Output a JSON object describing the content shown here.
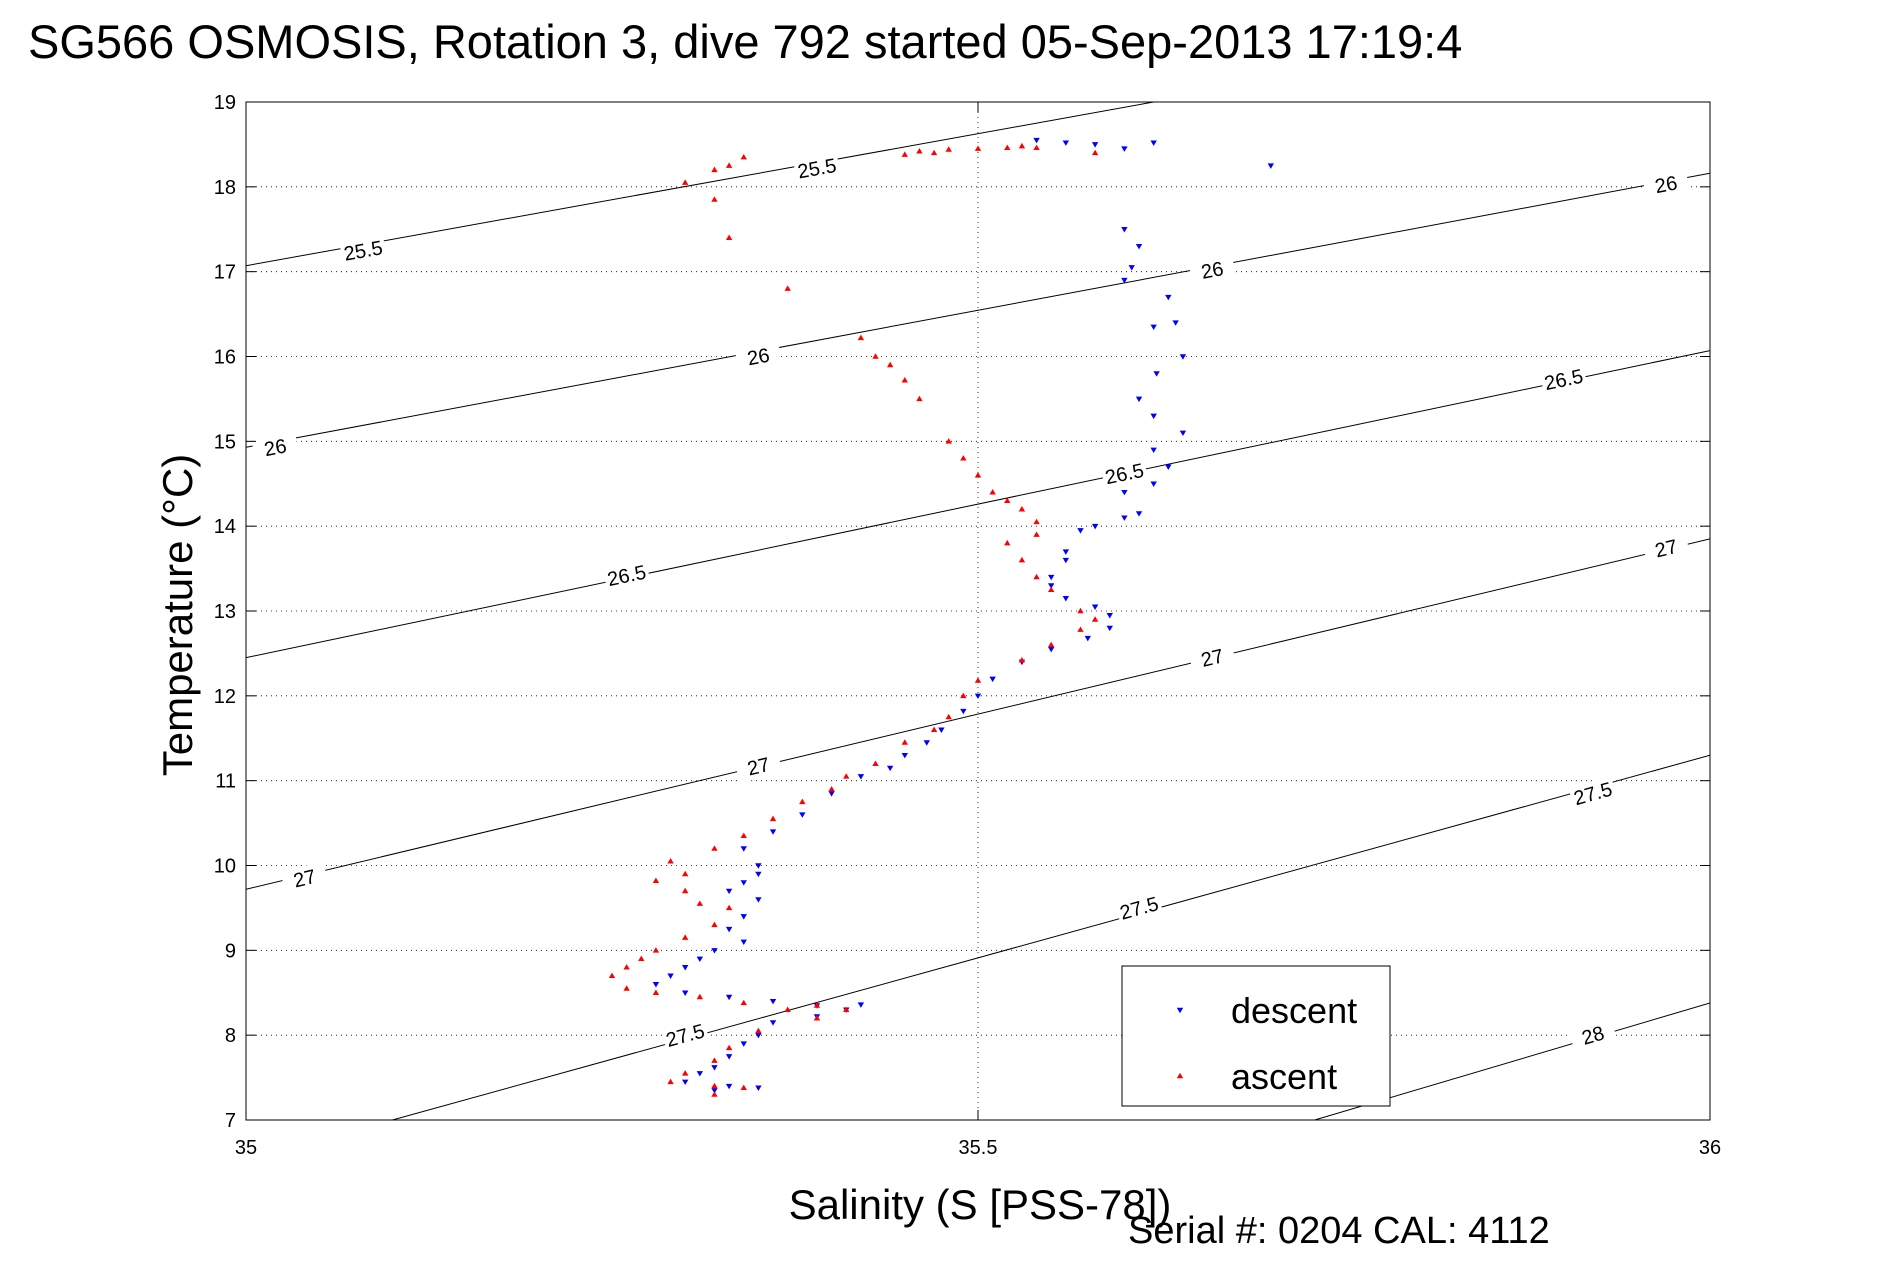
{
  "chart_data": {
    "type": "scatter",
    "title": "SG566 OSMOSIS, Rotation 3, dive 792 started 05-Sep-2013 17:19:4",
    "xlabel": "Salinity (S [PSS-78])",
    "ylabel": "Temperature (°C)",
    "footnote": "Serial #: 0204  CAL: 4112",
    "xlim": [
      35,
      36
    ],
    "ylim": [
      7,
      19
    ],
    "x_ticks": [
      "35",
      "35.5",
      "36"
    ],
    "y_ticks": [
      "7",
      "8",
      "9",
      "10",
      "11",
      "12",
      "13",
      "14",
      "15",
      "16",
      "17",
      "18",
      "19"
    ],
    "grid": "dotted",
    "legend_position": "bottom-right",
    "density_contours": [
      {
        "label": "25.5",
        "points": [
          [
            35.0,
            17.07
          ],
          [
            35.62,
            19.0
          ]
        ]
      },
      {
        "label": "26",
        "points": [
          [
            35.0,
            14.93
          ],
          [
            36.0,
            18.16
          ]
        ]
      },
      {
        "label": "26.5",
        "points": [
          [
            35.0,
            12.45
          ],
          [
            36.0,
            16.07
          ]
        ]
      },
      {
        "label": "27",
        "points": [
          [
            35.0,
            9.72
          ],
          [
            36.0,
            13.85
          ]
        ]
      },
      {
        "label": "27.5",
        "points": [
          [
            35.1,
            7.0
          ],
          [
            36.0,
            11.3
          ]
        ]
      },
      {
        "label": "28",
        "points": [
          [
            35.73,
            7.0
          ],
          [
            36.0,
            8.38
          ]
        ]
      }
    ],
    "contour_label_positions": [
      {
        "label": "25.5",
        "x": 35.08,
        "y": 17.25
      },
      {
        "label": "25.5",
        "x": 35.39,
        "y": 18.22
      },
      {
        "label": "26",
        "x": 35.02,
        "y": 14.93
      },
      {
        "label": "26",
        "x": 35.35,
        "y": 16.0
      },
      {
        "label": "26",
        "x": 35.66,
        "y": 17.02
      },
      {
        "label": "26",
        "x": 35.97,
        "y": 18.03
      },
      {
        "label": "26.5",
        "x": 35.26,
        "y": 13.42
      },
      {
        "label": "26.5",
        "x": 35.6,
        "y": 14.62
      },
      {
        "label": "26.5",
        "x": 35.9,
        "y": 15.73
      },
      {
        "label": "27",
        "x": 35.04,
        "y": 9.85
      },
      {
        "label": "27",
        "x": 35.35,
        "y": 11.17
      },
      {
        "label": "27",
        "x": 35.66,
        "y": 12.45
      },
      {
        "label": "27",
        "x": 35.97,
        "y": 13.74
      },
      {
        "label": "27.5",
        "x": 35.3,
        "y": 8.0
      },
      {
        "label": "27.5",
        "x": 35.61,
        "y": 9.5
      },
      {
        "label": "27.5",
        "x": 35.92,
        "y": 10.85
      },
      {
        "label": "28",
        "x": 35.92,
        "y": 8.0
      }
    ],
    "series": [
      {
        "name": "descent",
        "color": "#0000ff",
        "marker": "triangle-down",
        "points": [
          [
            35.7,
            18.25
          ],
          [
            35.62,
            18.52
          ],
          [
            35.6,
            18.45
          ],
          [
            35.58,
            18.5
          ],
          [
            35.56,
            18.52
          ],
          [
            35.54,
            18.55
          ],
          [
            35.6,
            17.5
          ],
          [
            35.61,
            17.3
          ],
          [
            35.605,
            17.05
          ],
          [
            35.6,
            16.9
          ],
          [
            35.63,
            16.7
          ],
          [
            35.635,
            16.4
          ],
          [
            35.62,
            16.35
          ],
          [
            35.64,
            16.0
          ],
          [
            35.622,
            15.8
          ],
          [
            35.61,
            15.5
          ],
          [
            35.62,
            15.3
          ],
          [
            35.64,
            15.1
          ],
          [
            35.62,
            14.9
          ],
          [
            35.63,
            14.7
          ],
          [
            35.62,
            14.5
          ],
          [
            35.6,
            14.4
          ],
          [
            35.61,
            14.15
          ],
          [
            35.6,
            14.1
          ],
          [
            35.58,
            14.0
          ],
          [
            35.57,
            13.95
          ],
          [
            35.56,
            13.7
          ],
          [
            35.56,
            13.6
          ],
          [
            35.55,
            13.4
          ],
          [
            35.55,
            13.3
          ],
          [
            35.56,
            13.15
          ],
          [
            35.58,
            13.05
          ],
          [
            35.59,
            12.95
          ],
          [
            35.59,
            12.8
          ],
          [
            35.575,
            12.68
          ],
          [
            35.55,
            12.55
          ],
          [
            35.53,
            12.4
          ],
          [
            35.51,
            12.2
          ],
          [
            35.5,
            12.0
          ],
          [
            35.49,
            11.82
          ],
          [
            35.475,
            11.6
          ],
          [
            35.465,
            11.45
          ],
          [
            35.45,
            11.3
          ],
          [
            35.44,
            11.15
          ],
          [
            35.42,
            11.05
          ],
          [
            35.4,
            10.85
          ],
          [
            35.38,
            10.6
          ],
          [
            35.36,
            10.4
          ],
          [
            35.34,
            10.2
          ],
          [
            35.35,
            10.0
          ],
          [
            35.35,
            9.9
          ],
          [
            35.34,
            9.8
          ],
          [
            35.33,
            9.7
          ],
          [
            35.35,
            9.6
          ],
          [
            35.34,
            9.4
          ],
          [
            35.33,
            9.25
          ],
          [
            35.34,
            9.1
          ],
          [
            35.32,
            9.0
          ],
          [
            35.31,
            8.9
          ],
          [
            35.3,
            8.8
          ],
          [
            35.29,
            8.7
          ],
          [
            35.28,
            8.6
          ],
          [
            35.3,
            8.5
          ],
          [
            35.33,
            8.45
          ],
          [
            35.36,
            8.4
          ],
          [
            35.39,
            8.35
          ],
          [
            35.42,
            8.36
          ],
          [
            35.41,
            8.3
          ],
          [
            35.39,
            8.22
          ],
          [
            35.36,
            8.15
          ],
          [
            35.35,
            8.0
          ],
          [
            35.34,
            7.9
          ],
          [
            35.33,
            7.75
          ],
          [
            35.32,
            7.62
          ],
          [
            35.31,
            7.55
          ],
          [
            35.3,
            7.45
          ],
          [
            35.33,
            7.4
          ],
          [
            35.35,
            7.38
          ],
          [
            35.32,
            7.35
          ]
        ]
      },
      {
        "name": "ascent",
        "color": "#ff0000",
        "marker": "triangle-up",
        "points": [
          [
            35.34,
            18.35
          ],
          [
            35.33,
            18.25
          ],
          [
            35.32,
            18.2
          ],
          [
            35.3,
            18.05
          ],
          [
            35.32,
            17.85
          ],
          [
            35.33,
            17.4
          ],
          [
            35.37,
            16.8
          ],
          [
            35.42,
            16.22
          ],
          [
            35.43,
            16.0
          ],
          [
            35.44,
            15.9
          ],
          [
            35.45,
            15.72
          ],
          [
            35.46,
            15.5
          ],
          [
            35.48,
            15.0
          ],
          [
            35.49,
            14.8
          ],
          [
            35.5,
            14.6
          ],
          [
            35.51,
            14.4
          ],
          [
            35.52,
            14.3
          ],
          [
            35.53,
            14.2
          ],
          [
            35.54,
            14.05
          ],
          [
            35.54,
            13.9
          ],
          [
            35.52,
            13.8
          ],
          [
            35.53,
            13.6
          ],
          [
            35.54,
            13.4
          ],
          [
            35.55,
            13.25
          ],
          [
            35.57,
            13.0
          ],
          [
            35.58,
            12.9
          ],
          [
            35.57,
            12.78
          ],
          [
            35.55,
            12.6
          ],
          [
            35.53,
            12.42
          ],
          [
            35.5,
            12.18
          ],
          [
            35.49,
            12.0
          ],
          [
            35.48,
            11.75
          ],
          [
            35.47,
            11.6
          ],
          [
            35.45,
            11.45
          ],
          [
            35.43,
            11.2
          ],
          [
            35.41,
            11.05
          ],
          [
            35.4,
            10.9
          ],
          [
            35.38,
            10.75
          ],
          [
            35.36,
            10.55
          ],
          [
            35.34,
            10.35
          ],
          [
            35.32,
            10.2
          ],
          [
            35.29,
            10.05
          ],
          [
            35.3,
            9.9
          ],
          [
            35.28,
            9.82
          ],
          [
            35.3,
            9.7
          ],
          [
            35.31,
            9.55
          ],
          [
            35.33,
            9.5
          ],
          [
            35.32,
            9.3
          ],
          [
            35.3,
            9.15
          ],
          [
            35.28,
            9.0
          ],
          [
            35.27,
            8.9
          ],
          [
            35.26,
            8.8
          ],
          [
            35.25,
            8.7
          ],
          [
            35.26,
            8.55
          ],
          [
            35.28,
            8.5
          ],
          [
            35.31,
            8.45
          ],
          [
            35.34,
            8.38
          ],
          [
            35.37,
            8.3
          ],
          [
            35.39,
            8.35
          ],
          [
            35.41,
            8.3
          ],
          [
            35.39,
            8.2
          ],
          [
            35.35,
            8.05
          ],
          [
            35.33,
            7.85
          ],
          [
            35.32,
            7.7
          ],
          [
            35.3,
            7.55
          ],
          [
            35.29,
            7.45
          ],
          [
            35.32,
            7.4
          ],
          [
            35.34,
            7.38
          ],
          [
            35.32,
            7.3
          ],
          [
            35.46,
            18.42
          ],
          [
            35.48,
            18.44
          ],
          [
            35.5,
            18.45
          ],
          [
            35.52,
            18.46
          ],
          [
            35.53,
            18.48
          ],
          [
            35.54,
            18.46
          ],
          [
            35.58,
            18.4
          ],
          [
            35.47,
            18.4
          ],
          [
            35.45,
            18.38
          ]
        ]
      }
    ],
    "legend": [
      {
        "label": "descent",
        "color": "#0000ff"
      },
      {
        "label": "ascent",
        "color": "#ff0000"
      }
    ]
  }
}
